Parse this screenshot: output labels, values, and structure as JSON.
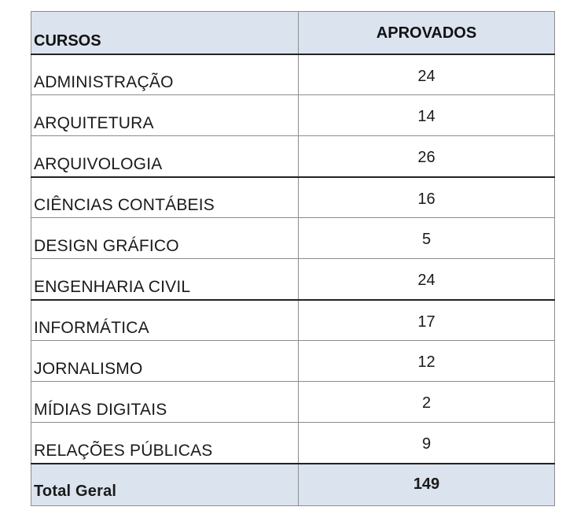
{
  "table": {
    "headers": {
      "courses": "CURSOS",
      "approved": "APROVADOS"
    },
    "rows": [
      {
        "course": "ADMINISTRAÇÃO",
        "approved": "24"
      },
      {
        "course": "ARQUITETURA",
        "approved": "14"
      },
      {
        "course": "ARQUIVOLOGIA",
        "approved": "26"
      },
      {
        "course": "CIÊNCIAS CONTÁBEIS",
        "approved": "16"
      },
      {
        "course": "DESIGN GRÁFICO",
        "approved": "5"
      },
      {
        "course": "ENGENHARIA CIVIL",
        "approved": "24"
      },
      {
        "course": "INFORMÁTICA",
        "approved": "17"
      },
      {
        "course": "JORNALISMO",
        "approved": "12"
      },
      {
        "course": "MÍDIAS DIGITAIS",
        "approved": "2"
      },
      {
        "course": "RELAÇÕES PÚBLICAS",
        "approved": "9"
      }
    ],
    "total": {
      "label": "Total Geral",
      "value": "149"
    }
  },
  "colors": {
    "header_bg": "#dbe3ee",
    "border": "#8c8c8c",
    "thick_border": "#222222"
  }
}
